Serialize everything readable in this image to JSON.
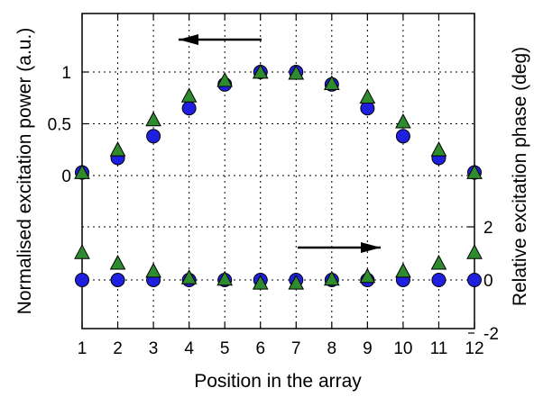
{
  "chart_data": {
    "type": "scatter",
    "xlabel": "Position in the array",
    "ylabel_left": "Normalised excitation power (a.u.)",
    "ylabel_right": "Relative excitation phase (deg)",
    "x": [
      1,
      2,
      3,
      4,
      5,
      6,
      7,
      8,
      9,
      10,
      11,
      12
    ],
    "x_ticks": [
      "1",
      "2",
      "3",
      "4",
      "5",
      "6",
      "7",
      "8",
      "9",
      "10",
      "11",
      "12"
    ],
    "xlim": [
      1,
      12
    ],
    "left_axis": {
      "ticks": [
        0,
        0.5,
        1
      ],
      "tick_labels": [
        "0",
        "0.5",
        "1"
      ],
      "data_range": [
        0,
        1
      ]
    },
    "right_axis": {
      "ticks": [
        -2,
        0,
        2
      ],
      "tick_labels": [
        "-2",
        "0",
        "2"
      ],
      "data_range": [
        -2,
        2
      ]
    },
    "grid": true,
    "series": [
      {
        "marker": "circle",
        "color": "#1f1fe0",
        "panel": "power",
        "values": [
          0.03,
          0.17,
          0.38,
          0.65,
          0.88,
          1.0,
          1.0,
          0.88,
          0.65,
          0.38,
          0.17,
          0.03
        ]
      },
      {
        "marker": "triangle",
        "color": "#2e8b2e",
        "panel": "power",
        "values": [
          0.02,
          0.24,
          0.53,
          0.76,
          0.91,
          0.99,
          0.98,
          0.88,
          0.75,
          0.51,
          0.24,
          0.02
        ]
      },
      {
        "marker": "circle",
        "color": "#1f1fe0",
        "panel": "phase",
        "values": [
          0,
          0,
          0,
          0,
          0,
          0,
          0,
          0,
          0,
          0,
          0,
          0
        ]
      },
      {
        "marker": "triangle",
        "color": "#2e8b2e",
        "panel": "phase",
        "values": [
          1.0,
          0.6,
          0.3,
          0.05,
          0.0,
          -0.15,
          -0.15,
          0.0,
          0.1,
          0.3,
          0.6,
          1.0
        ]
      }
    ],
    "annotations": [
      {
        "type": "arrow",
        "direction": "left",
        "refers_to": "left_axis"
      },
      {
        "type": "arrow",
        "direction": "right",
        "refers_to": "right_axis"
      }
    ]
  }
}
